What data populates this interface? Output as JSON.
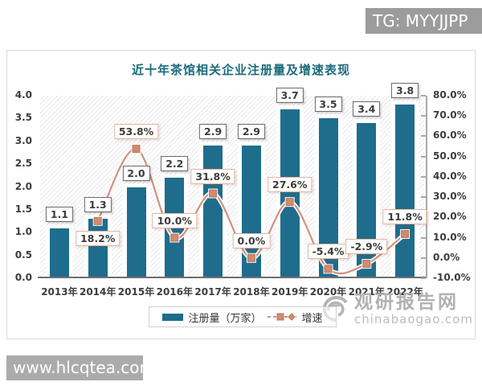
{
  "page": {
    "tg_badge": "TG: MYYJJPP",
    "site_badge": "www.hlcqtea.com"
  },
  "watermark": {
    "name": "观研报告网",
    "url": "chinabaogao.com"
  },
  "chart_data": {
    "type": "bar",
    "subtype": "bar+line combo",
    "title": "近十年茶馆相关企业注册量及增速表现",
    "categories": [
      "2013年",
      "2014年",
      "2015年",
      "2016年",
      "2017年",
      "2018年",
      "2019年",
      "2020年",
      "2021年",
      "2022年"
    ],
    "series": [
      {
        "name": "注册量（万家）",
        "type": "bar",
        "axis": "left",
        "color": "#1e6d8c",
        "values": [
          1.1,
          1.3,
          2.0,
          2.2,
          2.9,
          2.9,
          3.7,
          3.5,
          3.4,
          3.8
        ],
        "value_labels": [
          "1.1",
          "1.3",
          "2.0",
          "2.2",
          "2.9",
          "2.9",
          "3.7",
          "3.5",
          "3.4",
          "3.8"
        ]
      },
      {
        "name": "增速",
        "type": "line",
        "axis": "right",
        "color": "#d29380",
        "marker_color": "#d08b70",
        "marker_edge_color": "#bf7457",
        "values": [
          null,
          18.2,
          53.8,
          10.0,
          31.8,
          0.0,
          27.6,
          -5.4,
          -2.9,
          11.8
        ],
        "value_labels": [
          null,
          "18.2%",
          "53.8%",
          "10.0%",
          "31.8%",
          "0.0%",
          "27.6%",
          "-5.4%",
          "-2.9%",
          "11.8%"
        ],
        "label_side": [
          null,
          "below",
          "above",
          "above",
          "above",
          "above",
          "above",
          "above",
          "above",
          "above"
        ]
      }
    ],
    "left_axis": {
      "min": 0,
      "max": 4,
      "step": 0.5,
      "ticks": [
        "4.0",
        "3.5",
        "3.0",
        "2.5",
        "2.0",
        "1.5",
        "1.0",
        "0.5",
        "0.0"
      ]
    },
    "right_axis": {
      "min": -10,
      "max": 80,
      "step": 10,
      "ticks": [
        "80.0%",
        "70.0%",
        "60.0%",
        "50.0%",
        "40.0%",
        "30.0%",
        "20.0%",
        "10.0%",
        "0.0%",
        "-10.0%"
      ]
    },
    "legend": [
      "注册量（万家）",
      "增速"
    ],
    "legend_position": "bottom",
    "grid": false,
    "title_color": "#1b6b7b"
  }
}
